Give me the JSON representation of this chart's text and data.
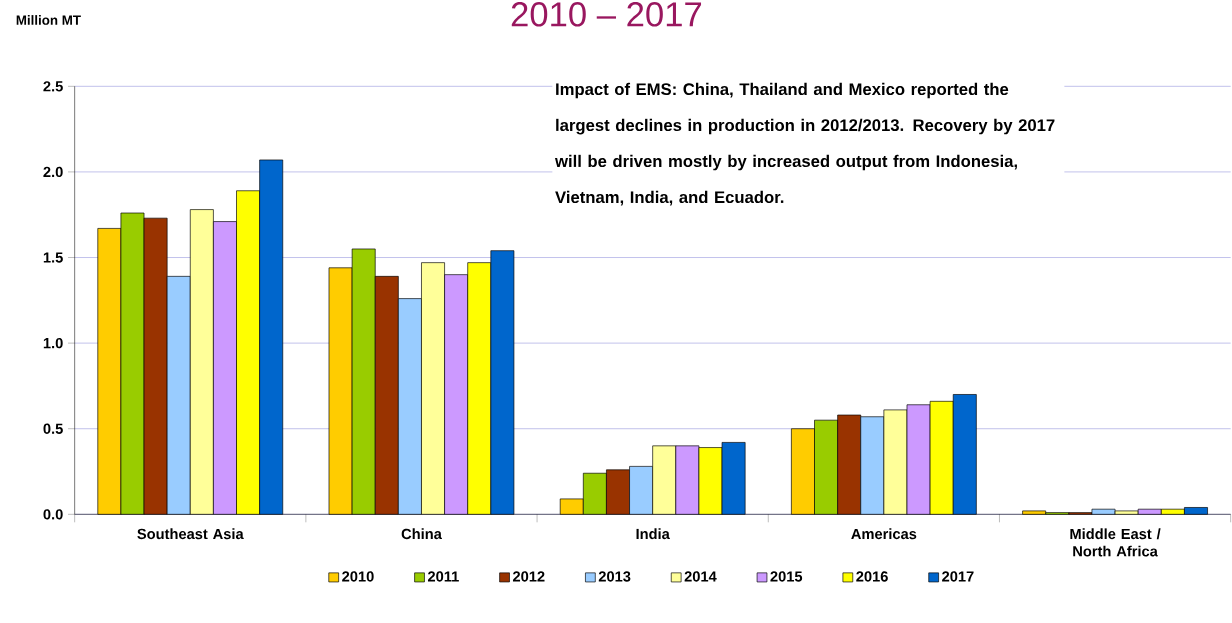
{
  "chart_data": {
    "type": "bar",
    "title": "2010 – 2017",
    "ylabel": "Million MT",
    "categories": [
      "Southeast Asia",
      "China",
      "India",
      "Americas",
      "Middle East / North Africa"
    ],
    "series": [
      {
        "name": "2010",
        "color": "#ffcc00",
        "values": [
          1.67,
          1.44,
          0.09,
          0.5,
          0.02
        ]
      },
      {
        "name": "2011",
        "color": "#99cc00",
        "values": [
          1.76,
          1.55,
          0.24,
          0.55,
          0.01
        ]
      },
      {
        "name": "2012",
        "color": "#993300",
        "values": [
          1.73,
          1.39,
          0.26,
          0.58,
          0.01
        ]
      },
      {
        "name": "2013",
        "color": "#99ccff",
        "values": [
          1.39,
          1.26,
          0.28,
          0.57,
          0.03
        ]
      },
      {
        "name": "2014",
        "color": "#ffff99",
        "values": [
          1.78,
          1.47,
          0.4,
          0.61,
          0.02
        ]
      },
      {
        "name": "2015",
        "color": "#cc99ff",
        "values": [
          1.71,
          1.4,
          0.4,
          0.64,
          0.03
        ]
      },
      {
        "name": "2016",
        "color": "#ffff00",
        "values": [
          1.89,
          1.47,
          0.39,
          0.66,
          0.03
        ]
      },
      {
        "name": "2017",
        "color": "#0066cc",
        "values": [
          2.07,
          1.54,
          0.42,
          0.7,
          0.04
        ]
      }
    ],
    "ylim": [
      0,
      2.5
    ],
    "yticks": [
      {
        "value": 0,
        "label": "0.0"
      },
      {
        "value": 0.5,
        "label": "0.5"
      },
      {
        "value": 1,
        "label": "1.0"
      },
      {
        "value": 1.5,
        "label": "1.5"
      },
      {
        "value": 2,
        "label": "2.0"
      },
      {
        "value": 2.5,
        "label": "2.5"
      }
    ],
    "grid": "y",
    "legend": "bottom",
    "annotations": [
      "Impact of EMS: China, Thailand and Mexico reported the largest declines in production in 2012/2013.  Recovery by 2017 will be driven mostly by increased output from Indonesia, Vietnam, India, and Ecuador."
    ]
  }
}
